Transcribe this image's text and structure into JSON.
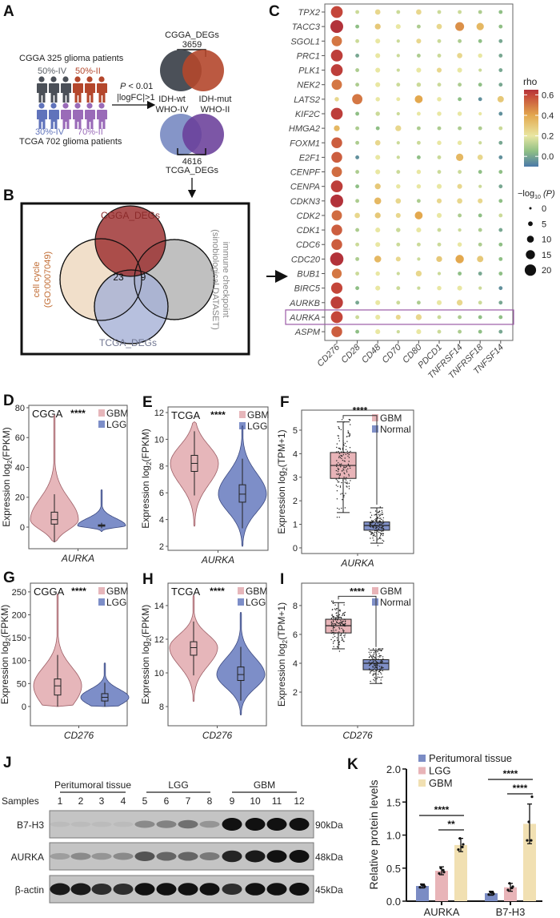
{
  "panels": {
    "A": "A",
    "B": "B",
    "C": "C",
    "D": "D",
    "E": "E",
    "F": "F",
    "G": "G",
    "H": "H",
    "I": "I",
    "J": "J",
    "K": "K"
  },
  "panel_a": {
    "cgga_cohort": "CGGA 325 glioma patients",
    "tcga_cohort": "TCGA 702 glioma patients",
    "cgga_iv": "50%-IV",
    "cgga_ii": "50%-II",
    "tcga_iv": "30%-IV",
    "tcga_ii": "70%-II",
    "criteria_p_symbol": "P",
    "criteria_p_rest": " < 0.01",
    "criteria_fc": "|logFC|>1",
    "cgga_degs": "CGGA_DEGs",
    "cgga_count": "3659",
    "idh_wt": "IDH-wt",
    "who_iv": "WHO-IV",
    "idh_mut": "IDH-mut",
    "who_ii": "WHO-II",
    "tcga_count": "4616",
    "tcga_degs": "TCGA_DEGs",
    "colors": {
      "cgga_iv": "#4b5058",
      "cgga_ii": "#b4472c",
      "tcga_iv": "#6073bb",
      "tcga_ii": "#9a6bb8"
    }
  },
  "panel_b": {
    "cgga": "CGGA_DEGs",
    "tcga": "TCGA_DEGs",
    "cell_cycle": "cell cycle",
    "go_id": "(GO:0007049)",
    "immune": "immune checkpoint",
    "immune_source": "(sinobiological DATASET)",
    "overlap_cell_cycle": "23",
    "overlap_immune": "9"
  },
  "chart_data": [
    {
      "type": "dot-heatmap",
      "genes": [
        "TPX2",
        "TACC3",
        "SGOL1",
        "PRC1",
        "PLK1",
        "NEK2",
        "LATS2",
        "KIF2C",
        "HMGA2",
        "FOXM1",
        "E2F1",
        "CENPF",
        "CENPA",
        "CDKN3",
        "CDK2",
        "CDK1",
        "CDC6",
        "CDC20",
        "BUB1",
        "BIRC5",
        "AURKB",
        "AURKA",
        "ASPM"
      ],
      "columns": [
        "CD276",
        "CD28",
        "CD48",
        "CD70",
        "CD80",
        "PDCD1",
        "TNFRSF14",
        "TNFRSF18",
        "TNFSF14"
      ],
      "highlight_gene": "AURKA",
      "rho": [
        [
          0.6,
          0.15,
          0.25,
          0.15,
          0.25,
          0.15,
          0.15,
          0.1,
          0.05
        ],
        [
          0.65,
          0.05,
          0.3,
          0.2,
          0.1,
          0.25,
          0.45,
          0.35,
          0.05
        ],
        [
          0.5,
          0.15,
          0.2,
          0.15,
          0.25,
          0.15,
          0.1,
          0.05,
          0.0
        ],
        [
          0.62,
          0.0,
          0.2,
          0.15,
          0.1,
          0.15,
          0.25,
          0.2,
          0.0
        ],
        [
          0.62,
          0.1,
          0.2,
          0.15,
          0.2,
          0.25,
          0.2,
          0.15,
          0.0
        ],
        [
          0.5,
          0.1,
          0.2,
          0.15,
          0.15,
          0.15,
          0.1,
          0.05,
          0.0
        ],
        [
          0.25,
          0.5,
          0.2,
          0.2,
          0.4,
          0.2,
          0.05,
          -0.05,
          0.3
        ],
        [
          0.62,
          0.05,
          0.15,
          0.15,
          0.2,
          0.2,
          0.2,
          0.2,
          -0.05
        ],
        [
          0.35,
          0.1,
          0.05,
          0.25,
          0.1,
          0.1,
          0.1,
          0.1,
          0.15
        ],
        [
          0.55,
          0.1,
          0.25,
          0.15,
          0.15,
          0.2,
          0.2,
          0.15,
          0.0
        ],
        [
          0.55,
          -0.05,
          0.2,
          0.15,
          0.05,
          0.15,
          0.35,
          0.25,
          -0.05
        ],
        [
          0.52,
          0.1,
          0.2,
          0.15,
          0.2,
          0.15,
          0.15,
          0.05,
          0.05
        ],
        [
          0.62,
          0.05,
          0.3,
          0.2,
          0.2,
          0.2,
          0.25,
          0.15,
          0.0
        ],
        [
          0.65,
          0.1,
          0.35,
          0.25,
          0.1,
          0.25,
          0.25,
          0.25,
          0.05
        ],
        [
          0.52,
          0.25,
          0.3,
          0.25,
          0.4,
          0.2,
          0.1,
          0.05,
          0.15
        ],
        [
          0.55,
          0.1,
          0.2,
          0.15,
          0.2,
          0.15,
          0.15,
          0.1,
          0.0
        ],
        [
          0.55,
          0.15,
          0.2,
          0.15,
          0.15,
          0.15,
          0.2,
          0.1,
          0.05
        ],
        [
          0.65,
          0.1,
          0.35,
          0.25,
          0.15,
          0.3,
          0.4,
          0.3,
          0.05
        ],
        [
          0.5,
          0.15,
          0.2,
          0.15,
          0.25,
          0.15,
          0.05,
          0.0,
          0.05
        ],
        [
          0.6,
          0.05,
          0.2,
          0.15,
          0.15,
          0.2,
          0.2,
          0.15,
          -0.05
        ],
        [
          0.62,
          0.0,
          0.2,
          0.15,
          0.1,
          0.2,
          0.25,
          0.15,
          0.0
        ],
        [
          0.6,
          0.15,
          0.2,
          0.25,
          0.25,
          0.15,
          0.1,
          0.05,
          0.05
        ],
        [
          0.55,
          0.05,
          0.2,
          0.15,
          0.2,
          0.15,
          0.1,
          0.05,
          0.0
        ]
      ],
      "neg_log10_p": [
        [
          18,
          2,
          5,
          2,
          5,
          2,
          2,
          2,
          2
        ],
        [
          20,
          2,
          6,
          4,
          2,
          5,
          12,
          9,
          2
        ],
        [
          15,
          2,
          4,
          1,
          4,
          2,
          2,
          2,
          2
        ],
        [
          18,
          2,
          4,
          1,
          2,
          2,
          5,
          3,
          2
        ],
        [
          18,
          2,
          4,
          1,
          4,
          4,
          4,
          1,
          2
        ],
        [
          15,
          2,
          4,
          2,
          3,
          2,
          2,
          2,
          2
        ],
        [
          3,
          15,
          3,
          2,
          10,
          3,
          2,
          2,
          7
        ],
        [
          18,
          2,
          3,
          1,
          2,
          3,
          3,
          1,
          2
        ],
        [
          6,
          2,
          2,
          6,
          2,
          2,
          2,
          2,
          2
        ],
        [
          16,
          2,
          5,
          1,
          2,
          3,
          3,
          1,
          2
        ],
        [
          16,
          2,
          4,
          1,
          2,
          2,
          9,
          5,
          2
        ],
        [
          15,
          2,
          4,
          2,
          3,
          2,
          2,
          2,
          2
        ],
        [
          18,
          2,
          6,
          3,
          3,
          4,
          4,
          1,
          2
        ],
        [
          20,
          2,
          8,
          5,
          2,
          4,
          5,
          4,
          2
        ],
        [
          15,
          5,
          6,
          4,
          10,
          4,
          2,
          2,
          2
        ],
        [
          16,
          2,
          4,
          3,
          4,
          2,
          1,
          2,
          2
        ],
        [
          16,
          2,
          4,
          2,
          2,
          2,
          3,
          2,
          2
        ],
        [
          21,
          2,
          8,
          4,
          1,
          6,
          11,
          7,
          2
        ],
        [
          14,
          2,
          3,
          1,
          6,
          1,
          2,
          2,
          2
        ],
        [
          17,
          2,
          4,
          2,
          1,
          3,
          4,
          1,
          2
        ],
        [
          19,
          2,
          4,
          2,
          2,
          4,
          6,
          2,
          2
        ],
        [
          18,
          2,
          4,
          4,
          6,
          2,
          2,
          2,
          2
        ],
        [
          16,
          2,
          4,
          1,
          4,
          2,
          2,
          2,
          2
        ]
      ],
      "color_legend": {
        "title": "rho",
        "ticks": [
          "0.6",
          "0.4",
          "0.2",
          "0.0"
        ],
        "range": [
          -0.1,
          0.65
        ],
        "stops": [
          [
            "-0.1",
            "#4a78a8"
          ],
          [
            "0.05",
            "#8fbf85"
          ],
          [
            "0.2",
            "#e9e7a2"
          ],
          [
            "0.4",
            "#e3a84e"
          ],
          [
            "0.6",
            "#c4463a"
          ],
          [
            "0.65",
            "#b2323a"
          ]
        ]
      },
      "size_legend": {
        "title_main": "−log",
        "title_sub": "10",
        "title_p": " (P)",
        "values": [
          0,
          5,
          10,
          15,
          20
        ]
      }
    },
    {
      "type": "violin",
      "dataset": "CGGA",
      "significance": "****",
      "xlabel": "AURKA",
      "ylabel": "Expression log2(FPKM)",
      "ylim": [
        -14.5,
        81.6
      ],
      "yticks": [
        0,
        20,
        40,
        60,
        80
      ],
      "series": [
        {
          "name": "GBM",
          "color": "#e6b6ba",
          "min": -10,
          "q1": 2,
          "median": 5,
          "q3": 10,
          "max": 75
        },
        {
          "name": "LGG",
          "color": "#7d8ec8",
          "min": -3,
          "q1": 0.6,
          "median": 1,
          "q3": 1.5,
          "max": 25
        }
      ]
    },
    {
      "type": "violin",
      "dataset": "TCGA",
      "significance": "****",
      "xlabel": "AURKA",
      "ylabel": "Expression log2(FPKM)",
      "ylim": [
        1.7,
        12.42
      ],
      "yticks": [
        2,
        4,
        6,
        8,
        10,
        12
      ],
      "series": [
        {
          "name": "GBM",
          "color": "#e6b6ba",
          "min": 3.5,
          "q1": 7.6,
          "median": 8.2,
          "q3": 8.8,
          "max": 11.3
        },
        {
          "name": "LGG",
          "color": "#7d8ec8",
          "min": 2,
          "q1": 5.3,
          "median": 5.9,
          "q3": 6.6,
          "max": 11
        }
      ]
    },
    {
      "type": "box",
      "significance": "****",
      "xlabel": "AURKA",
      "ylabel": "Expression log2(TPM+1)",
      "ylim": [
        -0.24,
        5.85
      ],
      "yticks": [
        0,
        1,
        2,
        3,
        4,
        5
      ],
      "series": [
        {
          "name": "GBM",
          "color": "#e8b4b8",
          "min": 1.5,
          "q1": 2.95,
          "median": 3.5,
          "q3": 4.05,
          "max": 5.35
        },
        {
          "name": "Normal",
          "color": "#8090c8",
          "min": 0.2,
          "q1": 0.75,
          "median": 0.95,
          "q3": 1.1,
          "max": 1.7
        }
      ]
    },
    {
      "type": "violin",
      "dataset": "CGGA",
      "significance": "****",
      "xlabel": "CD276",
      "ylabel": "Expression log2(FPKM)",
      "ylim": [
        -42,
        269
      ],
      "yticks": [
        0,
        50,
        100,
        150,
        200,
        250
      ],
      "series": [
        {
          "name": "GBM",
          "color": "#e6b6ba",
          "min": 0,
          "q1": 25,
          "median": 45,
          "q3": 60,
          "max": 245
        },
        {
          "name": "LGG",
          "color": "#7d8ec8",
          "min": 0,
          "q1": 12,
          "median": 20,
          "q3": 28,
          "max": 95
        }
      ]
    },
    {
      "type": "violin",
      "dataset": "TCGA",
      "significance": "****",
      "xlabel": "CD276",
      "ylabel": "Expression log2(FPKM)",
      "ylim": [
        6.86,
        15.33
      ],
      "yticks": [
        8,
        10,
        12,
        14
      ],
      "series": [
        {
          "name": "GBM",
          "color": "#e6b6ba",
          "min": 8.3,
          "q1": 11.05,
          "median": 11.5,
          "q3": 11.85,
          "max": 14.6
        },
        {
          "name": "LGG",
          "color": "#7d8ec8",
          "min": 7.5,
          "q1": 9.55,
          "median": 9.9,
          "q3": 10.35,
          "max": 13.6
        }
      ]
    },
    {
      "type": "box",
      "significance": "****",
      "xlabel": "CD276",
      "ylabel": "Expression log2(TPM+1)",
      "ylim": [
        -0.33,
        9.55
      ],
      "yticks": [
        2,
        4,
        6,
        8
      ],
      "series": [
        {
          "name": "GBM",
          "color": "#e8b4b8",
          "min": 5,
          "q1": 6.1,
          "median": 6.6,
          "q3": 7.05,
          "max": 8.2
        },
        {
          "name": "Normal",
          "color": "#8090c8",
          "min": 2.6,
          "q1": 3.55,
          "median": 4,
          "q3": 4.25,
          "max": 4.9
        }
      ]
    },
    {
      "type": "bar",
      "categories": [
        "AURKA",
        "B7-H3"
      ],
      "ylabel": "Relative protein levels",
      "ylim": [
        0,
        2.0
      ],
      "yticks": [
        "0.0",
        "0.5",
        "1.0",
        "1.5",
        "2.0"
      ],
      "legend_position": "top-left",
      "series": [
        {
          "name": "Peritumoral tissue",
          "color": "#7b8cc4",
          "values": [
            0.23,
            0.12
          ],
          "sd": [
            0.03,
            0.03
          ],
          "points": [
            [
              0.21,
              0.24,
              0.25,
              0.22
            ],
            [
              0.1,
              0.13,
              0.14,
              0.11
            ]
          ]
        },
        {
          "name": "LGG",
          "color": "#e8b4b8",
          "values": [
            0.46,
            0.21
          ],
          "sd": [
            0.06,
            0.06
          ],
          "points": [
            [
              0.42,
              0.47,
              0.5,
              0.44
            ],
            [
              0.17,
              0.2,
              0.27,
              0.22
            ]
          ]
        },
        {
          "name": "GBM",
          "color": "#f1e0b2",
          "values": [
            0.85,
            1.17
          ],
          "sd": [
            0.1,
            0.3
          ],
          "points": [
            [
              0.78,
              0.82,
              0.95,
              0.86
            ],
            [
              0.92,
              0.92,
              1.2,
              1.58
            ]
          ]
        }
      ],
      "comparisons": [
        {
          "category": "AURKA",
          "from": 0,
          "to": 2,
          "label": "****"
        },
        {
          "category": "AURKA",
          "from": 1,
          "to": 2,
          "label": "**"
        },
        {
          "category": "B7-H3",
          "from": 0,
          "to": 2,
          "label": "****"
        },
        {
          "category": "B7-H3",
          "from": 1,
          "to": 2,
          "label": "****"
        }
      ]
    }
  ],
  "panel_j": {
    "groups": [
      "Peritumoral tissue",
      "LGG",
      "GBM"
    ],
    "samples_label": "Samples",
    "samples": [
      "1",
      "2",
      "3",
      "4",
      "5",
      "6",
      "7",
      "8",
      "9",
      "10",
      "11",
      "12"
    ],
    "blots": [
      {
        "protein": "B7-H3",
        "size": "90kDa",
        "intensity": [
          0.05,
          0.05,
          0.05,
          0.05,
          0.3,
          0.35,
          0.45,
          0.25,
          1,
          1,
          1,
          1
        ]
      },
      {
        "protein": "AURKA",
        "size": "48kDa",
        "intensity": [
          0.2,
          0.3,
          0.25,
          0.3,
          0.6,
          0.5,
          0.5,
          0.4,
          0.85,
          0.9,
          0.95,
          1
        ]
      },
      {
        "protein": "β-actin",
        "size": "45kDa",
        "intensity": [
          0.9,
          0.9,
          0.8,
          0.8,
          0.95,
          0.95,
          0.95,
          0.95,
          0.8,
          0.95,
          0.95,
          1
        ]
      }
    ]
  }
}
